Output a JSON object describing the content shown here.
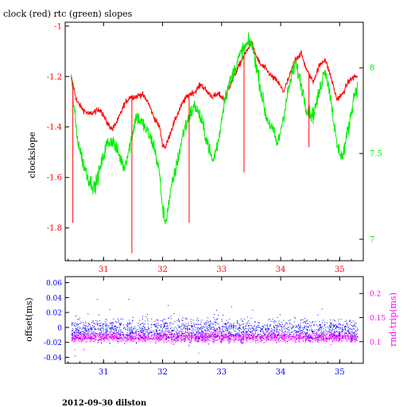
{
  "colors": {
    "red": "#ff0000",
    "green": "#00ee00",
    "blue": "#0000ff",
    "magenta": "#ff00ff",
    "black": "#000000"
  },
  "chart_data": [
    {
      "type": "line",
      "title": "clock (red) rtc (green) slopes",
      "ylabel": "clockslope",
      "xlim": [
        30.35,
        35.4
      ],
      "ylim": [
        -1.93,
        -0.985
      ],
      "y2lim": [
        6.875,
        8.265
      ],
      "x_ticks": [
        31,
        32,
        33,
        34,
        35
      ],
      "x_tick_labels": [
        "31",
        "32",
        "33",
        "34",
        "35"
      ],
      "y_ticks": [
        -1,
        -1.2,
        -1.4,
        -1.6,
        -1.8
      ],
      "y_tick_labels": [
        "-1",
        "-1.2",
        "-1.4",
        "-1.6",
        "-1.8"
      ],
      "y2_ticks": [
        8,
        7.5,
        7
      ],
      "y2_tick_labels": [
        "8",
        "7.5",
        "7"
      ],
      "series": [
        {
          "name": "clock",
          "color": "#ff0000",
          "axis": "left",
          "x": [
            30.45,
            30.55,
            30.65,
            30.75,
            30.85,
            30.95,
            31.05,
            31.15,
            31.25,
            31.35,
            31.45,
            31.55,
            31.65,
            31.75,
            31.85,
            31.95,
            32.0,
            32.05,
            32.15,
            32.25,
            32.35,
            32.45,
            32.55,
            32.65,
            32.75,
            32.85,
            32.95,
            33.05,
            33.15,
            33.25,
            33.35,
            33.45,
            33.5,
            33.55,
            33.65,
            33.75,
            33.85,
            33.95,
            34.05,
            34.15,
            34.25,
            34.35,
            34.45,
            34.55,
            34.65,
            34.75,
            34.85,
            34.95,
            35.05,
            35.15,
            35.25,
            35.3
          ],
          "y": [
            -1.2,
            -1.3,
            -1.33,
            -1.35,
            -1.34,
            -1.33,
            -1.38,
            -1.41,
            -1.37,
            -1.31,
            -1.28,
            -1.28,
            -1.27,
            -1.3,
            -1.36,
            -1.4,
            -1.47,
            -1.48,
            -1.41,
            -1.35,
            -1.3,
            -1.27,
            -1.26,
            -1.23,
            -1.26,
            -1.28,
            -1.27,
            -1.29,
            -1.23,
            -1.18,
            -1.13,
            -1.09,
            -1.06,
            -1.1,
            -1.15,
            -1.17,
            -1.2,
            -1.22,
            -1.26,
            -1.2,
            -1.13,
            -1.11,
            -1.18,
            -1.22,
            -1.16,
            -1.13,
            -1.2,
            -1.29,
            -1.27,
            -1.22,
            -1.2,
            -1.2
          ]
        },
        {
          "name": "rtc",
          "color": "#00ee00",
          "axis": "right",
          "x": [
            30.45,
            30.55,
            30.65,
            30.75,
            30.85,
            30.95,
            31.05,
            31.15,
            31.25,
            31.35,
            31.45,
            31.55,
            31.65,
            31.75,
            31.85,
            31.95,
            32.0,
            32.05,
            32.15,
            32.25,
            32.35,
            32.45,
            32.55,
            32.65,
            32.75,
            32.85,
            32.95,
            33.05,
            33.15,
            33.25,
            33.35,
            33.45,
            33.5,
            33.55,
            33.65,
            33.75,
            33.85,
            33.95,
            34.05,
            34.15,
            34.25,
            34.35,
            34.45,
            34.55,
            34.65,
            34.75,
            34.85,
            34.95,
            35.05,
            35.15,
            35.25,
            35.3
          ],
          "y": [
            7.95,
            7.6,
            7.45,
            7.35,
            7.3,
            7.42,
            7.55,
            7.58,
            7.5,
            7.42,
            7.55,
            7.72,
            7.68,
            7.62,
            7.55,
            7.38,
            7.18,
            7.1,
            7.3,
            7.45,
            7.62,
            7.72,
            7.78,
            7.7,
            7.58,
            7.45,
            7.58,
            7.82,
            7.92,
            8.02,
            8.1,
            8.14,
            8.15,
            8.08,
            7.9,
            7.72,
            7.65,
            7.55,
            7.72,
            7.9,
            8.03,
            7.9,
            7.75,
            7.72,
            7.85,
            8.0,
            7.82,
            7.55,
            7.48,
            7.65,
            7.85,
            7.88
          ]
        }
      ]
    },
    {
      "type": "scatter",
      "ylabel": "offset(ms)",
      "y2label": "rnd-trip(ms)",
      "xlim": [
        30.35,
        35.4
      ],
      "ylim": [
        -0.048,
        0.068
      ],
      "y2lim": [
        0.055,
        0.235
      ],
      "x_ticks": [
        31,
        32,
        33,
        34,
        35
      ],
      "x_tick_labels": [
        "31",
        "32",
        "33",
        "34",
        "35"
      ],
      "y_ticks": [
        0.06,
        0.04,
        0.02,
        0,
        -0.02,
        -0.04
      ],
      "y_tick_labels": [
        "0.06",
        "0.04",
        "0.02",
        "0",
        "-0.02",
        "-0.04"
      ],
      "y2_ticks": [
        0.2,
        0.15,
        0.1
      ],
      "y2_tick_labels": [
        "0.2",
        "0.15",
        "0.1"
      ],
      "series": [
        {
          "name": "offset",
          "color": "#0000ff",
          "axis": "left",
          "x_range": [
            30.45,
            35.3
          ],
          "y_center": -0.002,
          "y_spread": 0.014
        },
        {
          "name": "rnd-trip",
          "color": "#ff00ff",
          "axis": "right",
          "x_range": [
            30.45,
            35.3
          ],
          "y_center": 0.11,
          "y_spread": 0.01
        }
      ]
    }
  ],
  "footer": "2012-09-30 dilston"
}
